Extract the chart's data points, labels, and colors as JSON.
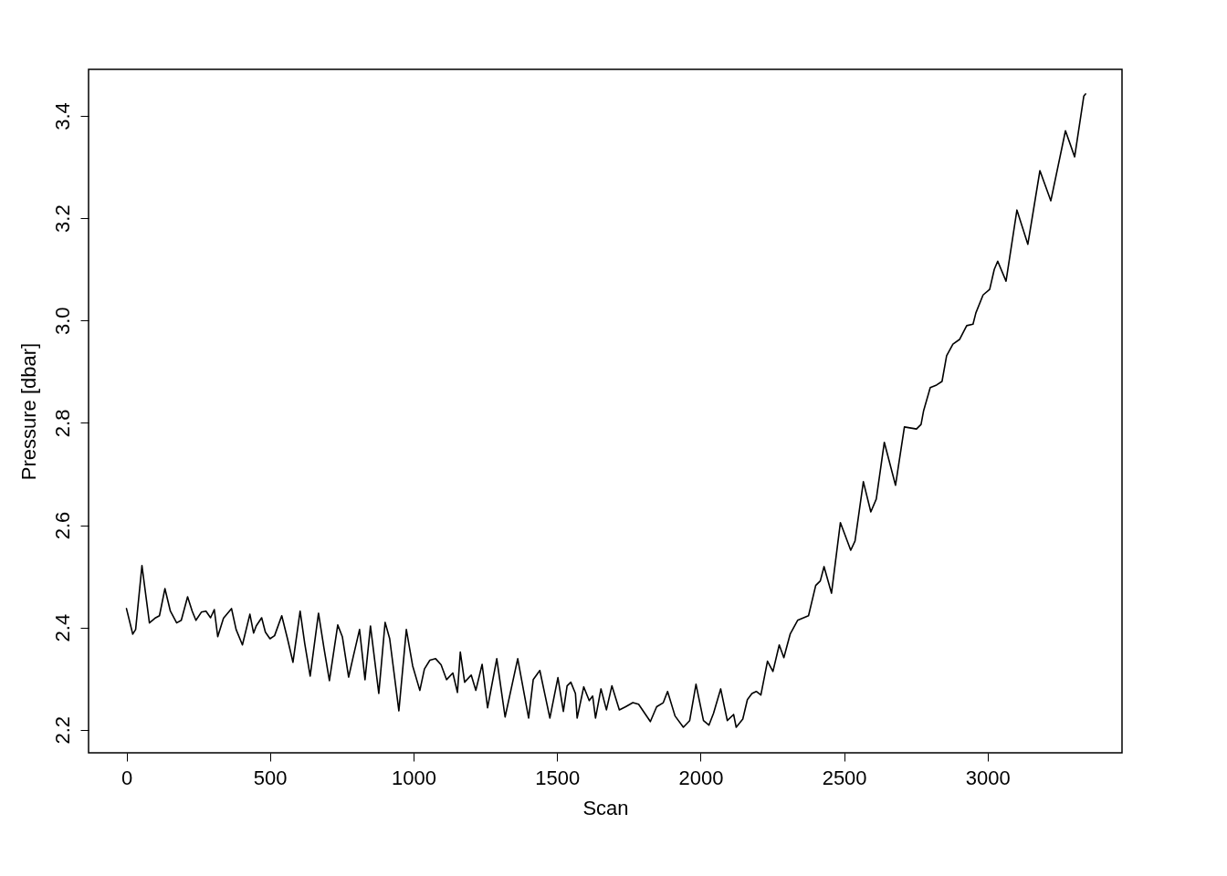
{
  "chart_data": {
    "type": "line",
    "xlabel": "Scan",
    "ylabel": "Pressure [dbar]",
    "xlim": [
      -132,
      3468
    ],
    "ylim": [
      2.155,
      3.491
    ],
    "xticks": [
      0,
      500,
      1000,
      1500,
      2000,
      2500,
      3000
    ],
    "yticks": [
      2.2,
      2.4,
      2.6,
      2.8,
      {
        "value": 3,
        "label": "3.0"
      },
      3.2,
      3.4
    ],
    "grid": false,
    "marker": "none",
    "line_style": "solid",
    "series": [
      {
        "color": "#000000",
        "x": [
          0,
          22,
          32,
          54,
          80,
          99,
          115,
          134,
          153,
          175,
          191,
          213,
          229,
          242,
          261,
          277,
          293,
          306,
          318,
          338,
          366,
          382,
          404,
          430,
          443,
          452,
          471,
          484,
          500,
          516,
          541,
          561,
          580,
          605,
          621,
          640,
          669,
          688,
          707,
          736,
          752,
          774,
          790,
          812,
          831,
          850,
          879,
          901,
          917,
          949,
          975,
          997,
          1022,
          1038,
          1057,
          1077,
          1096,
          1115,
          1137,
          1153,
          1163,
          1178,
          1201,
          1217,
          1239,
          1258,
          1290,
          1319,
          1363,
          1401,
          1417,
          1440,
          1475,
          1503,
          1522,
          1535,
          1548,
          1564,
          1570,
          1593,
          1612,
          1624,
          1634,
          1653,
          1672,
          1691,
          1717,
          1739,
          1764,
          1784,
          1825,
          1847,
          1870,
          1885,
          1911,
          1940,
          1962,
          1984,
          2010,
          2029,
          2045,
          2070,
          2093,
          2115,
          2124,
          2147,
          2163,
          2179,
          2194,
          2210,
          2233,
          2252,
          2274,
          2290,
          2312,
          2338,
          2376,
          2401,
          2417,
          2430,
          2456,
          2487,
          2523,
          2538,
          2567,
          2593,
          2612,
          2640,
          2679,
          2710,
          2752,
          2768,
          2777,
          2800,
          2822,
          2841,
          2857,
          2879,
          2902,
          2927,
          2949,
          2959,
          2984,
          3007,
          3023,
          3035,
          3064,
          3102,
          3140,
          3182,
          3220,
          3271,
          3303,
          3335,
          3341
        ],
        "values": [
          2.437,
          2.387,
          2.396,
          2.521,
          2.409,
          2.418,
          2.423,
          2.476,
          2.432,
          2.409,
          2.414,
          2.46,
          2.432,
          2.414,
          2.43,
          2.432,
          2.419,
          2.435,
          2.382,
          2.418,
          2.437,
          2.396,
          2.366,
          2.426,
          2.389,
          2.403,
          2.419,
          2.391,
          2.378,
          2.384,
          2.423,
          2.378,
          2.332,
          2.432,
          2.369,
          2.305,
          2.428,
          2.36,
          2.296,
          2.405,
          2.382,
          2.303,
          2.343,
          2.396,
          2.298,
          2.403,
          2.271,
          2.41,
          2.378,
          2.237,
          2.396,
          2.325,
          2.277,
          2.319,
          2.336,
          2.339,
          2.327,
          2.298,
          2.311,
          2.273,
          2.352,
          2.293,
          2.307,
          2.277,
          2.328,
          2.243,
          2.339,
          2.225,
          2.339,
          2.223,
          2.298,
          2.316,
          2.223,
          2.302,
          2.236,
          2.286,
          2.293,
          2.271,
          2.223,
          2.284,
          2.257,
          2.266,
          2.223,
          2.28,
          2.239,
          2.286,
          2.239,
          2.245,
          2.253,
          2.25,
          2.216,
          2.245,
          2.253,
          2.275,
          2.227,
          2.205,
          2.218,
          2.289,
          2.218,
          2.209,
          2.232,
          2.28,
          2.218,
          2.23,
          2.205,
          2.221,
          2.259,
          2.271,
          2.275,
          2.268,
          2.334,
          2.314,
          2.366,
          2.341,
          2.387,
          2.414,
          2.423,
          2.482,
          2.491,
          2.519,
          2.467,
          2.605,
          2.551,
          2.569,
          2.685,
          2.626,
          2.651,
          2.762,
          2.678,
          2.792,
          2.788,
          2.797,
          2.824,
          2.869,
          2.874,
          2.881,
          2.931,
          2.954,
          2.963,
          2.99,
          2.993,
          3.015,
          3.05,
          3.061,
          3.1,
          3.116,
          3.077,
          3.216,
          3.149,
          3.293,
          3.234,
          3.371,
          3.32,
          3.439,
          3.443
        ]
      }
    ]
  }
}
